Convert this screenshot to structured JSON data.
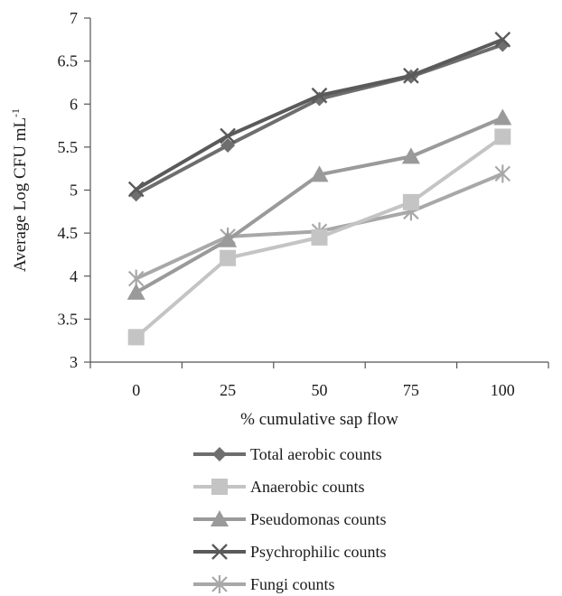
{
  "chart_data": {
    "type": "line",
    "title": "",
    "xlabel": "% cumulative sap flow",
    "ylabel": "Average Log CFU mL",
    "ylabel_superscript": "-1",
    "categories": [
      "0",
      "25",
      "50",
      "75",
      "100"
    ],
    "ylim": [
      3,
      7
    ],
    "yticks": [
      "3",
      "3.5",
      "4",
      "4.5",
      "5",
      "5.5",
      "6",
      "6.5",
      "7"
    ],
    "grid": false,
    "legend_position": "bottom",
    "series": [
      {
        "name": "Total aerobic counts",
        "values": [
          4.95,
          5.52,
          6.06,
          6.32,
          6.69
        ],
        "color": "#6e6e6e",
        "marker": "diamond"
      },
      {
        "name": "Anaerobic counts",
        "values": [
          3.29,
          4.21,
          4.45,
          4.86,
          5.62
        ],
        "color": "#c4c4c4",
        "marker": "square"
      },
      {
        "name": "Pseudomonas counts",
        "values": [
          3.81,
          4.42,
          5.18,
          5.39,
          5.84
        ],
        "color": "#9a9a9a",
        "marker": "triangle"
      },
      {
        "name": "Psychrophilic counts",
        "values": [
          5.01,
          5.63,
          6.1,
          6.33,
          6.75
        ],
        "color": "#5a5a5a",
        "marker": "x"
      },
      {
        "name": "Fungi counts",
        "values": [
          3.97,
          4.46,
          4.52,
          4.75,
          5.19
        ],
        "color": "#a8a8a8",
        "marker": "asterisk"
      }
    ]
  }
}
